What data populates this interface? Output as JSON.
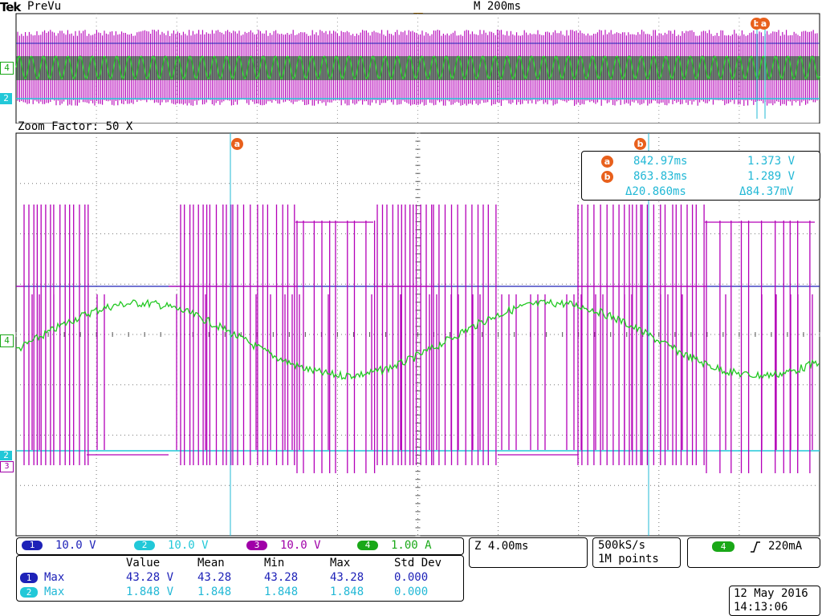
{
  "header": {
    "brand": "Tek",
    "mode": "PreVu",
    "timebase": "M 200ms",
    "zoom_factor": "Zoom Factor: 50 X"
  },
  "cursors": {
    "a_label": "a",
    "b_label": "b",
    "a_time": "842.97ms",
    "a_value": "1.373 V",
    "b_time": "863.83ms",
    "b_value": "1.289 V",
    "delta_time": "Δ20.860ms",
    "delta_value": "Δ84.37mV"
  },
  "channel_markers": {
    "ch4": "4",
    "ch2": "2",
    "ch3": "3"
  },
  "channels": [
    {
      "num": "1",
      "scale": "10.0 V",
      "color": "#1e22b8"
    },
    {
      "num": "2",
      "scale": "10.0 V",
      "color": "#22c8d8"
    },
    {
      "num": "3",
      "scale": "10.0 V",
      "color": "#a000a8"
    },
    {
      "num": "4",
      "scale": "1.00 A",
      "color": "#1aa818"
    }
  ],
  "zoom_time": "Z 4.00ms",
  "acquisition": {
    "rate": "500kS/s",
    "points": "1M points"
  },
  "trigger": {
    "source": "4",
    "slope_icon": "rising-edge-icon",
    "level": "220mA"
  },
  "measurements": {
    "headers": [
      "Value",
      "Mean",
      "Min",
      "Max",
      "Std Dev"
    ],
    "rows": [
      {
        "ch": "1",
        "color": "#1e22b8",
        "label": "Max",
        "value": "43.28 V",
        "mean": "43.28",
        "min": "43.28",
        "max": "43.28",
        "std": "0.000"
      },
      {
        "ch": "2",
        "color": "#22c8d8",
        "label": "Max",
        "value": "1.848 V",
        "mean": "1.848",
        "min": "1.848",
        "max": "1.848",
        "std": "0.000"
      }
    ]
  },
  "datetime": {
    "date": "12 May 2016",
    "time": "14:13:06"
  }
}
